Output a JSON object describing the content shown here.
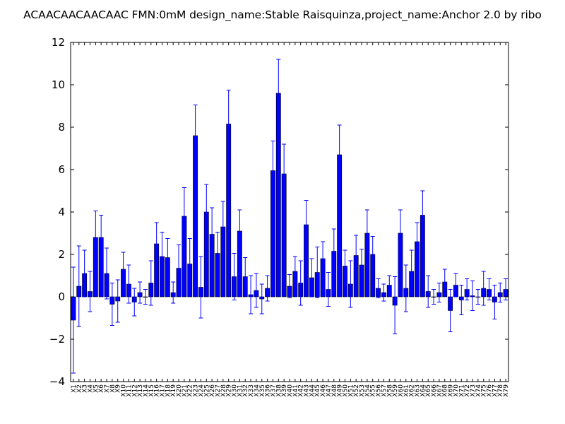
{
  "chart_data": {
    "type": "bar",
    "title": "ACAACAACAACAAC  FMN:0mM  design_name:Stable Raisquinza,project_name:Anchor 2.0 by ribo",
    "xlabel": "",
    "ylabel": "",
    "ylim": [
      -4,
      12
    ],
    "yticks": [
      -4,
      -2,
      0,
      2,
      4,
      6,
      8,
      10,
      12
    ],
    "ytick_labels": [
      "−4",
      "−2",
      "0",
      "2",
      "4",
      "6",
      "8",
      "10",
      "12"
    ],
    "bar_color": "#0000ff",
    "error_color": "#0000ff",
    "categories": [
      "X1",
      "X2",
      "X3",
      "X4",
      "X5",
      "X6",
      "X7",
      "X8",
      "X9",
      "X10",
      "X11",
      "X12",
      "X13",
      "X14",
      "X15",
      "X16",
      "X17",
      "X18",
      "X19",
      "X20",
      "X21",
      "X22",
      "X23",
      "X24",
      "X25",
      "X26",
      "X27",
      "X28",
      "X29",
      "X30",
      "X31",
      "X32",
      "X33",
      "X34",
      "X35",
      "X36",
      "X37",
      "X38",
      "X39",
      "X40",
      "X41",
      "X42",
      "X43",
      "X44",
      "X45",
      "X46",
      "X47",
      "X48",
      "X49",
      "X50",
      "X51",
      "X52",
      "X53",
      "X54",
      "X55",
      "X56",
      "X57",
      "X58",
      "X59",
      "X60",
      "X61",
      "X62",
      "X63",
      "X64",
      "X65",
      "X66",
      "X67",
      "X68",
      "X69",
      "X70",
      "X71",
      "X72",
      "X73",
      "X74",
      "X75",
      "X76",
      "X77",
      "X78",
      "X79"
    ],
    "values": [
      -1.1,
      0.5,
      1.1,
      0.25,
      2.8,
      2.8,
      1.1,
      -0.35,
      -0.2,
      1.3,
      0.6,
      -0.25,
      0.2,
      0.0,
      0.65,
      2.5,
      1.9,
      1.85,
      0.2,
      1.35,
      3.8,
      1.55,
      7.6,
      0.45,
      4.0,
      2.95,
      2.05,
      3.3,
      8.15,
      0.95,
      3.1,
      0.95,
      0.1,
      0.3,
      -0.1,
      0.4,
      5.95,
      9.6,
      5.8,
      0.5,
      1.2,
      0.65,
      3.4,
      0.9,
      1.15,
      1.8,
      0.35,
      2.15,
      6.7,
      1.45,
      0.6,
      1.95,
      1.5,
      3.0,
      2.0,
      0.4,
      0.2,
      0.55,
      -0.4,
      3.0,
      0.4,
      1.2,
      2.6,
      3.85,
      0.25,
      0.0,
      0.2,
      0.7,
      -0.65,
      0.55,
      -0.15,
      0.35,
      0.05,
      0.0,
      0.4,
      0.35,
      -0.25,
      0.2,
      0.35
    ],
    "errors": [
      2.5,
      1.9,
      1.1,
      0.95,
      1.25,
      1.05,
      1.2,
      1.0,
      1.0,
      0.8,
      0.9,
      0.65,
      0.5,
      0.35,
      1.05,
      1.0,
      1.15,
      0.9,
      0.5,
      1.1,
      1.35,
      1.2,
      1.45,
      1.45,
      1.3,
      1.25,
      1.0,
      1.2,
      1.6,
      1.1,
      1.0,
      0.9,
      0.9,
      0.8,
      0.7,
      0.6,
      1.4,
      1.6,
      1.4,
      0.55,
      0.7,
      1.05,
      1.15,
      0.9,
      1.2,
      0.8,
      0.8,
      1.05,
      1.4,
      0.75,
      1.1,
      0.95,
      0.75,
      1.1,
      0.85,
      0.45,
      0.4,
      0.45,
      1.35,
      1.1,
      1.1,
      1.0,
      0.9,
      1.15,
      0.75,
      0.35,
      0.45,
      0.6,
      1.0,
      0.55,
      0.7,
      0.5,
      0.7,
      0.35,
      0.8,
      0.5,
      0.8,
      0.45,
      0.5
    ]
  }
}
